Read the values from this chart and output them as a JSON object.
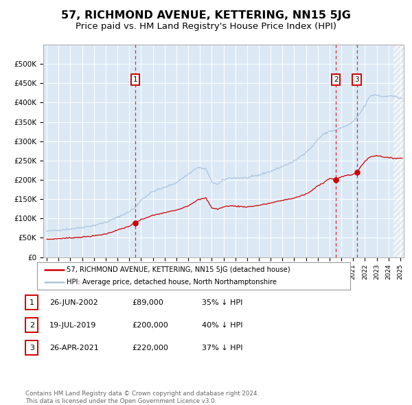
{
  "title": "57, RICHMOND AVENUE, KETTERING, NN15 5JG",
  "subtitle": "Price paid vs. HM Land Registry's House Price Index (HPI)",
  "sale_info": [
    [
      "1",
      "26-JUN-2002",
      "£89,000",
      "35% ↓ HPI"
    ],
    [
      "2",
      "19-JUL-2019",
      "£200,000",
      "40% ↓ HPI"
    ],
    [
      "3",
      "26-APR-2021",
      "£220,000",
      "37% ↓ HPI"
    ]
  ],
  "sale_dates_num": [
    2002.4959,
    2019.5411,
    2021.3178
  ],
  "sale_prices": [
    89000,
    200000,
    220000
  ],
  "legend_line1": "57, RICHMOND AVENUE, KETTERING, NN15 5JG (detached house)",
  "legend_line2": "HPI: Average price, detached house, North Northamptonshire",
  "footer": "Contains HM Land Registry data © Crown copyright and database right 2024.\nThis data is licensed under the Open Government Licence v3.0.",
  "hpi_color": "#aac4e0",
  "price_color": "#cc0000",
  "dot_color": "#cc0000",
  "plot_bg": "#dce9f5",
  "ylim": [
    0,
    550000
  ],
  "yticks": [
    0,
    50000,
    100000,
    150000,
    200000,
    250000,
    300000,
    350000,
    400000,
    450000,
    500000
  ],
  "xlim_start": 1994.7,
  "xlim_end": 2025.3,
  "hatch_region_start": 2024.42
}
